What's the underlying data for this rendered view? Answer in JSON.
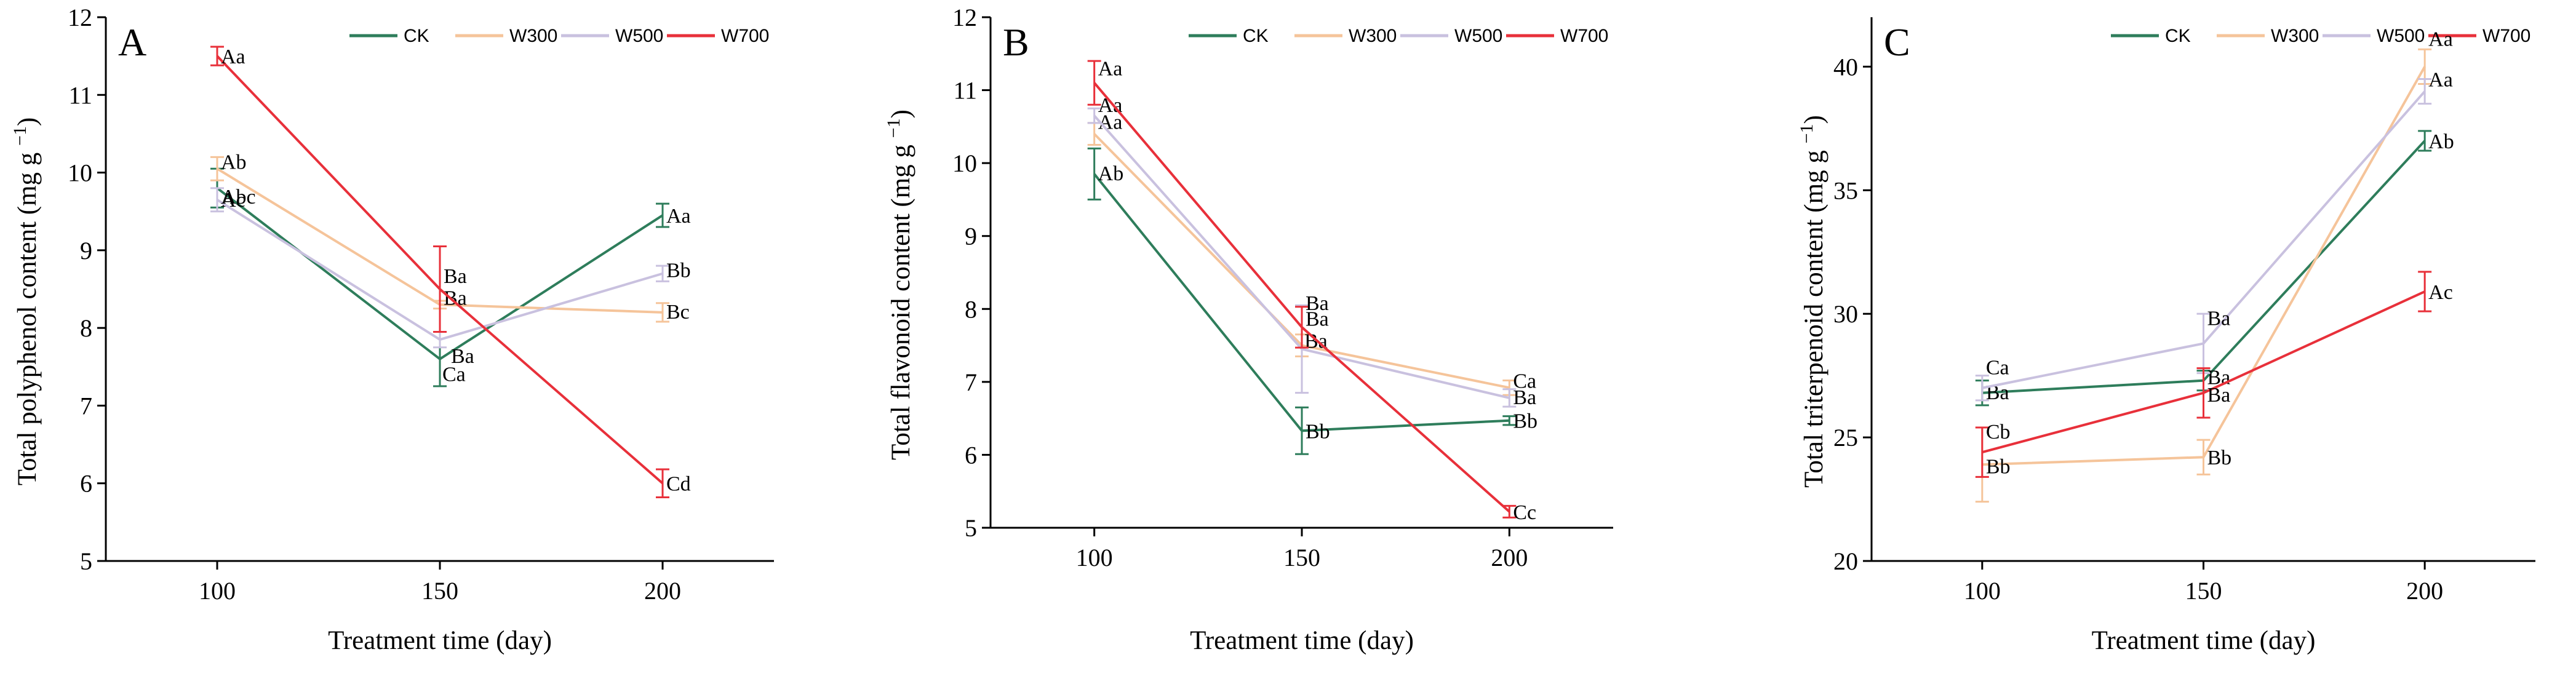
{
  "chart_data": [
    {
      "type": "line",
      "panel": "A",
      "xlabel": "Treatment time (day)",
      "ylabel": "Total polyphenol content (mg g",
      "ylabel_sup": "−1",
      "ylabel_close": ")",
      "x": [
        100,
        150,
        200
      ],
      "xlim": [
        75,
        225
      ],
      "ylim": [
        5,
        12
      ],
      "yticks": [
        5,
        6,
        7,
        8,
        9,
        10,
        11,
        12
      ],
      "legend_position": "top-right",
      "series": [
        {
          "name": "CK",
          "color": "#2e7d5b",
          "values": [
            9.8,
            7.6,
            9.45
          ],
          "err": [
            0.25,
            0.35,
            0.15
          ],
          "labels": [
            "Ac",
            "Ca",
            "Aa"
          ]
        },
        {
          "name": "W300",
          "color": "#f5c49a",
          "values": [
            10.05,
            8.3,
            8.2
          ],
          "err": [
            0.15,
            0.05,
            0.12
          ],
          "labels": [
            "Ab",
            "Ba",
            "Bc"
          ]
        },
        {
          "name": "W500",
          "color": "#c9c1df",
          "values": [
            9.65,
            7.85,
            8.7
          ],
          "err": [
            0.15,
            0.1,
            0.1
          ],
          "labels": [
            "Abc",
            "Ba",
            "Bb"
          ]
        },
        {
          "name": "W700",
          "color": "#e8303a",
          "values": [
            11.5,
            8.5,
            6.0
          ],
          "err": [
            0.12,
            0.55,
            0.18
          ],
          "labels": [
            "Aa",
            "Ba",
            "Cd"
          ]
        }
      ]
    },
    {
      "type": "line",
      "panel": "B",
      "xlabel": "Treatment time (day)",
      "ylabel": "Total flavonoid content (mg g",
      "ylabel_sup": "−1",
      "ylabel_close": ")",
      "x": [
        100,
        150,
        200
      ],
      "xlim": [
        75,
        225
      ],
      "ylim": [
        5,
        12
      ],
      "yticks": [
        5,
        6,
        7,
        8,
        9,
        10,
        11,
        12
      ],
      "legend_position": "top-right",
      "series": [
        {
          "name": "CK",
          "color": "#2e7d5b",
          "values": [
            9.85,
            6.33,
            6.47
          ],
          "err": [
            0.35,
            0.32,
            0.06
          ],
          "labels": [
            "Ab",
            "Bb",
            "Bb"
          ]
        },
        {
          "name": "W300",
          "color": "#f5c49a",
          "values": [
            10.4,
            7.5,
            6.92
          ],
          "err": [
            0.15,
            0.15,
            0.1
          ],
          "labels": [
            "Aa",
            "Ba",
            "Ca"
          ]
        },
        {
          "name": "W500",
          "color": "#c9c1df",
          "values": [
            10.65,
            7.45,
            6.78
          ],
          "err": [
            0.1,
            0.6,
            0.12
          ],
          "labels": [
            "Aa",
            "Ba",
            "Ba"
          ]
        },
        {
          "name": "W700",
          "color": "#e8303a",
          "values": [
            11.1,
            7.75,
            5.22
          ],
          "err": [
            0.3,
            0.28,
            0.08
          ],
          "labels": [
            "Aa",
            "Ba",
            "Cc"
          ]
        }
      ]
    },
    {
      "type": "line",
      "panel": "C",
      "xlabel": "Treatment time (day)",
      "ylabel": "Total triterpenoid content (mg g",
      "ylabel_sup": "−1",
      "ylabel_close": ")",
      "x": [
        100,
        150,
        200
      ],
      "xlim": [
        75,
        225
      ],
      "ylim": [
        20,
        42
      ],
      "yticks": [
        20,
        25,
        30,
        35,
        40
      ],
      "legend_position": "top-right",
      "series": [
        {
          "name": "CK",
          "color": "#2e7d5b",
          "values": [
            26.8,
            27.3,
            37.0
          ],
          "err": [
            0.5,
            0.4,
            0.4
          ],
          "labels": [
            "Ba",
            "Ba",
            "Ab"
          ]
        },
        {
          "name": "W300",
          "color": "#f5c49a",
          "values": [
            23.9,
            24.2,
            40.0
          ],
          "err": [
            1.5,
            0.7,
            0.7
          ],
          "labels": [
            "Bb",
            "Bb",
            "Aa"
          ]
        },
        {
          "name": "W500",
          "color": "#c9c1df",
          "values": [
            27.0,
            28.8,
            39.0
          ],
          "err": [
            0.5,
            1.2,
            0.5
          ],
          "labels": [
            "Ca",
            "Ba",
            "Aa"
          ]
        },
        {
          "name": "W700",
          "color": "#e8303a",
          "values": [
            24.4,
            26.8,
            30.9
          ],
          "err": [
            1.0,
            1.0,
            0.8
          ],
          "labels": [
            "Cb",
            "Ba",
            "Ac"
          ]
        }
      ]
    }
  ]
}
